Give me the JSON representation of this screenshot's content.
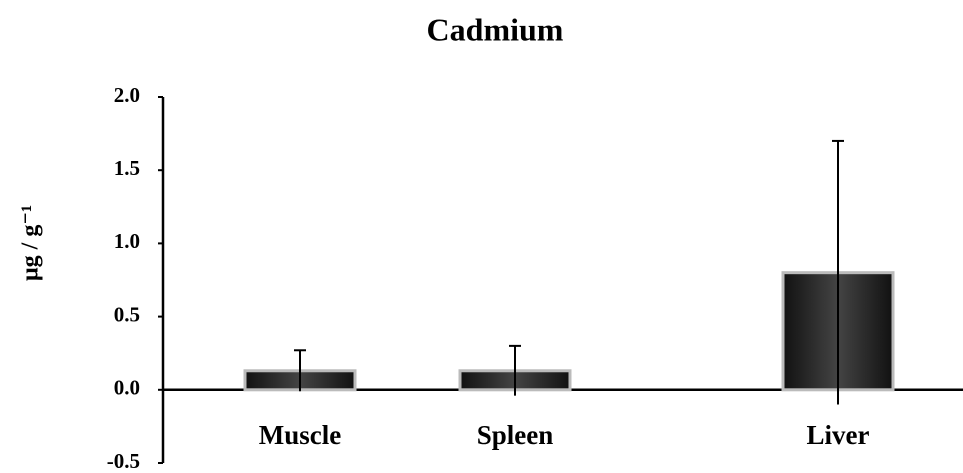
{
  "chart_data": {
    "type": "bar",
    "title": "Cadmium",
    "y_label": "µg / g⁻¹",
    "categories": [
      "Muscle",
      "Spleen",
      "Liver"
    ],
    "values": [
      0.13,
      0.13,
      0.8
    ],
    "errors": [
      0.14,
      0.17,
      0.9
    ],
    "color": "#2a2a2a",
    "ylim": [
      -0.5,
      2.0
    ],
    "yticks": [
      {
        "value": -0.5,
        "label": "-0.5"
      },
      {
        "value": 0,
        "label": "0.0"
      },
      {
        "value": 0.5,
        "label": "0.5"
      },
      {
        "value": 1.0,
        "label": "1.0"
      },
      {
        "value": 1.5,
        "label": "1.5"
      },
      {
        "value": 2.0,
        "label": "2.0"
      }
    ]
  }
}
